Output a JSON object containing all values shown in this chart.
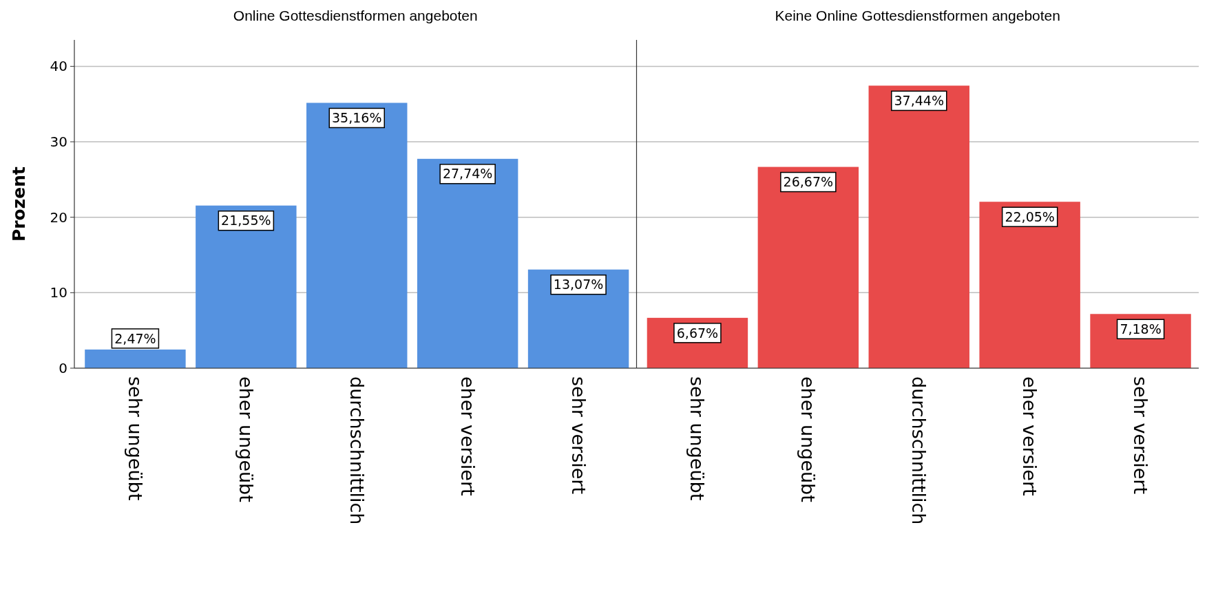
{
  "chart_data": [
    {
      "type": "bar",
      "title": "Online Gottesdienstformen angeboten",
      "ylabel": "Prozent",
      "categories": [
        "sehr ungeübt",
        "eher ungeübt",
        "durchschnittlich",
        "eher versiert",
        "sehr versiert"
      ],
      "values": [
        2.47,
        21.55,
        35.16,
        27.74,
        13.07
      ],
      "value_labels": [
        "2,47%",
        "21,55%",
        "35,16%",
        "27,74%",
        "13,07%"
      ],
      "color": "#5592e0",
      "ylim": [
        0,
        43.5
      ],
      "yticks": [
        0,
        10,
        20,
        30,
        40
      ],
      "grid": "y"
    },
    {
      "type": "bar",
      "title": "Keine Online Gottesdienstformen angeboten",
      "categories": [
        "sehr ungeübt",
        "eher ungeübt",
        "durchschnittlich",
        "eher versiert",
        "sehr versiert"
      ],
      "values": [
        6.67,
        26.67,
        37.44,
        22.05,
        7.18
      ],
      "value_labels": [
        "6,67%",
        "26,67%",
        "37,44%",
        "22,05%",
        "7,18%"
      ],
      "color": "#e84a4a",
      "ylim": [
        0,
        43.5
      ],
      "yticks": [
        0,
        10,
        20,
        30,
        40
      ],
      "grid": "y",
      "tick_labels": "x"
    }
  ]
}
